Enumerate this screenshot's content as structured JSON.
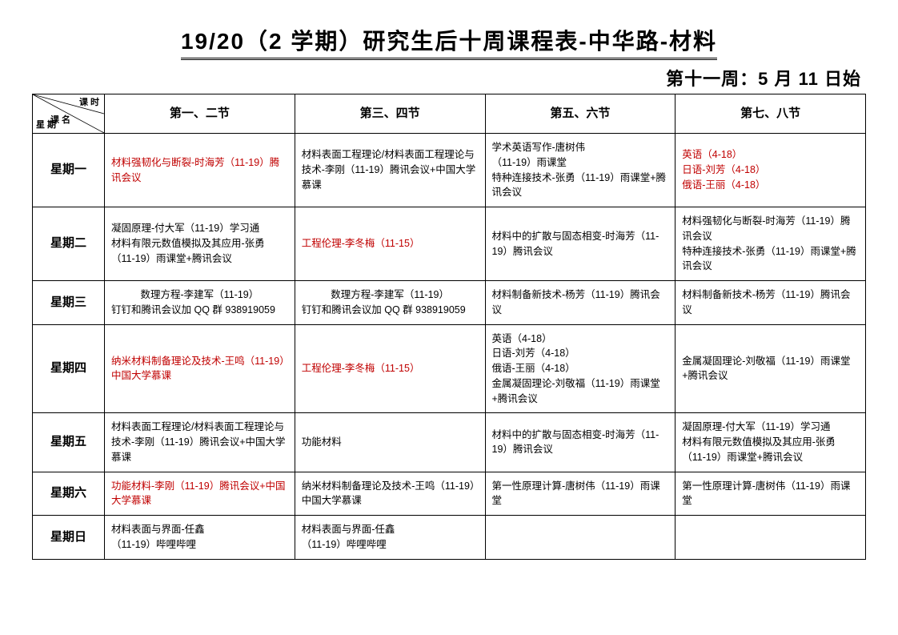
{
  "title": "19/20（2 学期）研究生后十周课程表-中华路-材料",
  "subtitle": "第十一周：5 月 11 日始",
  "diag": {
    "top": "课 时",
    "mid": "课 名",
    "bot": "星 期"
  },
  "headers": [
    "第一、二节",
    "第三、四节",
    "第五、六节",
    "第七、八节"
  ],
  "days": [
    "星期一",
    "星期二",
    "星期三",
    "星期四",
    "星期五",
    "星期六",
    "星期日"
  ],
  "cells": {
    "mon": {
      "c1": "材料强韧化与断裂-时海芳（11-19）腾讯会议",
      "c2": "材料表面工程理论/材料表面工程理论与技术-李刚（11-19）腾讯会议+中国大学慕课",
      "c3": "学术英语写作-唐树伟\n（11-19）雨课堂\n特种连接技术-张勇（11-19）雨课堂+腾讯会议",
      "c4a": "英语（4-18）",
      "c4b": "日语-刘芳（4-18）",
      "c4c": "俄语-王丽（4-18）"
    },
    "tue": {
      "c1": "凝固原理-付大军（11-19）学习通\n材料有限元数值模拟及其应用-张勇（11-19）雨课堂+腾讯会议",
      "c2": "工程伦理-李冬梅（11-15）",
      "c3": "材料中的扩散与固态相变-时海芳（11-19）腾讯会议",
      "c4": "材料强韧化与断裂-时海芳（11-19）腾讯会议\n特种连接技术-张勇（11-19）雨课堂+腾讯会议"
    },
    "wed": {
      "c1a": "数理方程-李建军（11-19）",
      "c1b": "钉钉和腾讯会议加 QQ 群 938919059",
      "c2a": "数理方程-李建军（11-19）",
      "c2b": "钉钉和腾讯会议加 QQ 群 938919059",
      "c3": "材料制备新技术-杨芳（11-19）腾讯会议",
      "c4": "材料制备新技术-杨芳（11-19）腾讯会议"
    },
    "thu": {
      "c1": "纳米材料制备理论及技术-王鸣（11-19）中国大学慕课",
      "c2": "工程伦理-李冬梅（11-15）",
      "c3": "英语（4-18）\n日语-刘芳（4-18）\n俄语-王丽（4-18）\n金属凝固理论-刘敬福（11-19）雨课堂+腾讯会议",
      "c4": "金属凝固理论-刘敬福（11-19）雨课堂+腾讯会议"
    },
    "fri": {
      "c1": "材料表面工程理论/材料表面工程理论与技术-李刚（11-19）腾讯会议+中国大学慕课",
      "c2": "功能材料",
      "c3": "材料中的扩散与固态相变-时海芳（11-19）腾讯会议",
      "c4": "凝固原理-付大军（11-19）学习通\n材料有限元数值模拟及其应用-张勇（11-19）雨课堂+腾讯会议"
    },
    "sat": {
      "c1": "功能材料-李刚（11-19）腾讯会议+中国大学慕课",
      "c2": "纳米材料制备理论及技术-王鸣（11-19）中国大学慕课",
      "c3": "第一性原理计算-唐树伟（11-19）雨课堂",
      "c4": "第一性原理计算-唐树伟（11-19）雨课堂"
    },
    "sun": {
      "c1": "材料表面与界面-任鑫\n（11-19）哔哩哔哩",
      "c2": "材料表面与界面-任鑫\n（11-19）哔哩哔哩",
      "c3": "",
      "c4": ""
    }
  },
  "colors": {
    "red": "#c00000",
    "black": "#000000",
    "bg": "#ffffff"
  }
}
